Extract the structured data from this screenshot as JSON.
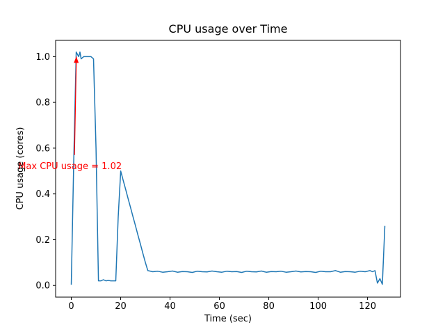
{
  "figure": {
    "background": "#ffffff"
  },
  "chart_data": {
    "type": "line",
    "title": "CPU usage over Time",
    "xlabel": "Time (sec)",
    "ylabel": "CPU usage (cores)",
    "line_color": "#1f77b4",
    "axis_color": "#000000",
    "xlim": [
      -6.35,
      133.35
    ],
    "ylim": [
      -0.051,
      1.071
    ],
    "x_ticks": [
      0,
      20,
      40,
      60,
      80,
      100,
      120
    ],
    "y_ticks": [
      "0.0",
      "0.2",
      "0.4",
      "0.6",
      "0.8",
      "1.0"
    ],
    "grid": false,
    "legend": "none",
    "points": [
      [
        0,
        0.003
      ],
      [
        1,
        0.55
      ],
      [
        2,
        1.02
      ],
      [
        3,
        1.0
      ],
      [
        3.5,
        1.02
      ],
      [
        4,
        0.99
      ],
      [
        5,
        1.0
      ],
      [
        6,
        1.0
      ],
      [
        7,
        1.0
      ],
      [
        8,
        1.0
      ],
      [
        9,
        0.99
      ],
      [
        10,
        0.6
      ],
      [
        11,
        0.02
      ],
      [
        12,
        0.02
      ],
      [
        13,
        0.025
      ],
      [
        14,
        0.02
      ],
      [
        15,
        0.022
      ],
      [
        16,
        0.02
      ],
      [
        17,
        0.02
      ],
      [
        18,
        0.02
      ],
      [
        19,
        0.3
      ],
      [
        20,
        0.5
      ],
      [
        21,
        0.46
      ],
      [
        22,
        0.42
      ],
      [
        23,
        0.38
      ],
      [
        24,
        0.34
      ],
      [
        25,
        0.3
      ],
      [
        26,
        0.26
      ],
      [
        27,
        0.22
      ],
      [
        28,
        0.18
      ],
      [
        29,
        0.14
      ],
      [
        30,
        0.1
      ],
      [
        31,
        0.065
      ],
      [
        33,
        0.06
      ],
      [
        35,
        0.062
      ],
      [
        37,
        0.058
      ],
      [
        39,
        0.06
      ],
      [
        41,
        0.063
      ],
      [
        43,
        0.058
      ],
      [
        45,
        0.061
      ],
      [
        47,
        0.06
      ],
      [
        49,
        0.057
      ],
      [
        51,
        0.062
      ],
      [
        53,
        0.06
      ],
      [
        55,
        0.059
      ],
      [
        57,
        0.063
      ],
      [
        59,
        0.06
      ],
      [
        61,
        0.058
      ],
      [
        63,
        0.062
      ],
      [
        65,
        0.06
      ],
      [
        67,
        0.061
      ],
      [
        69,
        0.057
      ],
      [
        71,
        0.062
      ],
      [
        73,
        0.06
      ],
      [
        75,
        0.059
      ],
      [
        77,
        0.063
      ],
      [
        79,
        0.058
      ],
      [
        81,
        0.061
      ],
      [
        83,
        0.06
      ],
      [
        85,
        0.062
      ],
      [
        87,
        0.058
      ],
      [
        89,
        0.06
      ],
      [
        91,
        0.063
      ],
      [
        93,
        0.059
      ],
      [
        95,
        0.061
      ],
      [
        97,
        0.06
      ],
      [
        99,
        0.057
      ],
      [
        101,
        0.062
      ],
      [
        103,
        0.06
      ],
      [
        105,
        0.06
      ],
      [
        107,
        0.065
      ],
      [
        109,
        0.058
      ],
      [
        111,
        0.061
      ],
      [
        113,
        0.06
      ],
      [
        115,
        0.058
      ],
      [
        117,
        0.062
      ],
      [
        119,
        0.06
      ],
      [
        121,
        0.065
      ],
      [
        122,
        0.06
      ],
      [
        123,
        0.065
      ],
      [
        124,
        0.01
      ],
      [
        125,
        0.03
      ],
      [
        126,
        0.005
      ],
      [
        127,
        0.26
      ]
    ],
    "annotation": {
      "text": "Max CPU usage = 1.02",
      "color": "#ff0000",
      "text_xy": [
        -21.5,
        0.52
      ],
      "arrow_from": [
        1.3,
        0.57
      ],
      "arrow_to": [
        2.05,
        1.0
      ]
    }
  }
}
